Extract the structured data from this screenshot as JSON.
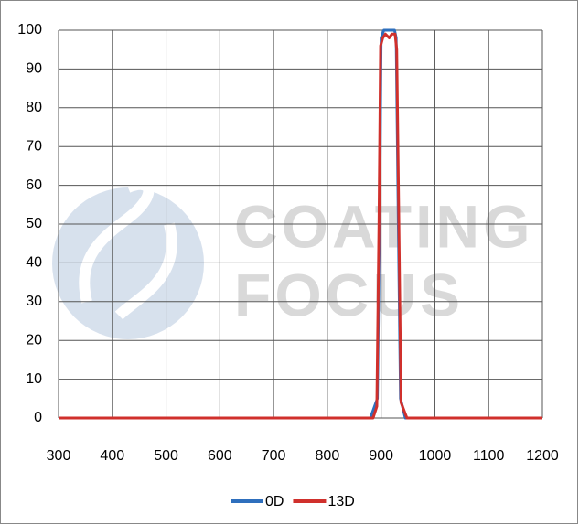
{
  "chart_data": {
    "type": "line",
    "watermark": [
      "COATING",
      "FOCUS"
    ],
    "xlim": [
      300,
      1200
    ],
    "xticks": [
      300,
      400,
      500,
      600,
      700,
      800,
      900,
      1000,
      1100,
      1200
    ],
    "ylim": [
      0,
      100
    ],
    "yticks": [
      0,
      10,
      20,
      30,
      40,
      50,
      60,
      70,
      80,
      90,
      100
    ],
    "grid": true,
    "legend": "bottom",
    "series": [
      {
        "name": "0D",
        "color": "#2e6fbd",
        "x": [
          300,
          880,
          893,
          897,
          900,
          905,
          925,
          928,
          932,
          936,
          945,
          1200
        ],
        "values": [
          0,
          0,
          5,
          50,
          98,
          100,
          100,
          98,
          50,
          5,
          0,
          0
        ]
      },
      {
        "name": "13D",
        "color": "#d0302c",
        "x": [
          300,
          885,
          892,
          896,
          899,
          903,
          908,
          915,
          920,
          926,
          929,
          933,
          937,
          948,
          1200
        ],
        "values": [
          0,
          0,
          3,
          50,
          96,
          98,
          99,
          98,
          99,
          99,
          95,
          50,
          4,
          0,
          0
        ]
      }
    ]
  }
}
